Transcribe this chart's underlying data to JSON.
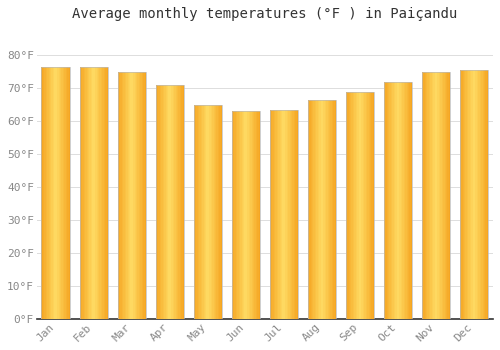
{
  "title": "Average monthly temperatures (°F ) in Paiçandu",
  "months": [
    "Jan",
    "Feb",
    "Mar",
    "Apr",
    "May",
    "Jun",
    "Jul",
    "Aug",
    "Sep",
    "Oct",
    "Nov",
    "Dec"
  ],
  "values": [
    76.5,
    76.5,
    75.0,
    71.0,
    65.0,
    63.0,
    63.5,
    66.5,
    69.0,
    72.0,
    75.0,
    75.5
  ],
  "bar_color_left": "#F5A623",
  "bar_color_center": "#FFD966",
  "bar_color_right": "#F5A623",
  "bar_edge_color": "#AAAAAA",
  "background_color": "#FFFFFF",
  "grid_color": "#DDDDDD",
  "ylim": [
    0,
    88
  ],
  "yticks": [
    0,
    10,
    20,
    30,
    40,
    50,
    60,
    70,
    80
  ],
  "title_fontsize": 10,
  "tick_fontsize": 8,
  "tick_color": "#888888"
}
